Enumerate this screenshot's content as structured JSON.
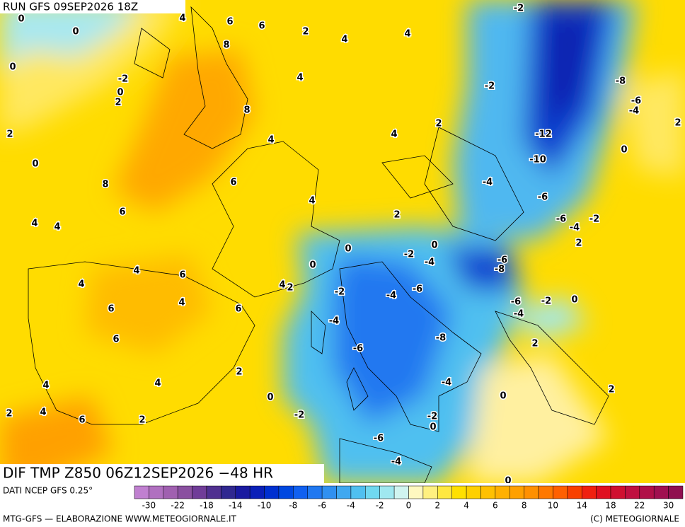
{
  "header": {
    "title": "RUN GFS 09SEP2026 18Z"
  },
  "map": {
    "subtitle": "DIF TMP Z850 06Z12SEP2026 −48 HR",
    "contour_labels": [
      -2,
      0,
      4,
      6,
      6,
      2,
      4,
      4,
      0,
      8,
      0,
      -2,
      4,
      -2,
      -8,
      0,
      2,
      8,
      -6,
      -4,
      2,
      4,
      4,
      2,
      -12,
      2,
      0,
      0,
      -10,
      8,
      6,
      -4,
      4,
      -6,
      6,
      2,
      -6,
      -2,
      -4,
      4,
      4,
      2,
      0,
      0,
      -2,
      -4,
      -6,
      -8,
      0,
      4,
      6,
      4,
      4,
      2,
      -2,
      -4,
      -6,
      6,
      4,
      6,
      -6,
      -2,
      0,
      -4,
      -4,
      -8,
      6,
      -6,
      2,
      2,
      4,
      4,
      -4,
      2,
      0,
      0,
      2,
      4,
      -2,
      6,
      2,
      -2,
      0,
      -6,
      -4,
      0
    ]
  },
  "colorbar": {
    "colors": [
      "#c080d0",
      "#b070c0",
      "#a060b0",
      "#8a50a0",
      "#703c98",
      "#503090",
      "#302890",
      "#1a1aa0",
      "#0a20b8",
      "#0030d0",
      "#0048e0",
      "#1060f0",
      "#2078f0",
      "#3090f0",
      "#40a8f0",
      "#50c0f0",
      "#70d8f0",
      "#a0e8f0",
      "#d0f4f0",
      "#fff8c0",
      "#fff080",
      "#ffe840",
      "#ffe000",
      "#ffd000",
      "#ffc000",
      "#ffb000",
      "#ffa000",
      "#ff9000",
      "#ff7800",
      "#ff6000",
      "#f84000",
      "#f02010",
      "#e01020",
      "#d01030",
      "#c01040",
      "#b01048",
      "#a01050",
      "#901050"
    ],
    "ticks": [
      -30,
      -22,
      -18,
      -14,
      -10,
      -8,
      -6,
      -4,
      -2,
      0,
      2,
      4,
      6,
      8,
      10,
      14,
      18,
      22,
      30
    ]
  },
  "footer": {
    "source": "DATI NCEP GFS 0.25°",
    "credit": "MTG-GFS — ELABORAZIONE WWW.METEOGIORNALE.IT",
    "copyright": "(C) METEOGIORNALE"
  }
}
